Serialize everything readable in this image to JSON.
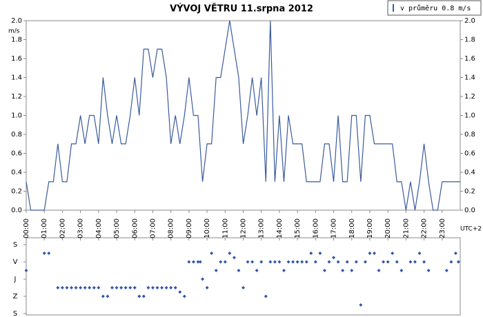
{
  "chart_data": [
    {
      "type": "line",
      "title": "VÝVOJ VĚTRU  11.srpna 2012",
      "ylabel": "m/s",
      "xlabel": "UTC+2",
      "legend": "top-right",
      "xlim": [
        0,
        24
      ],
      "xticks": [
        {
          "value": 0,
          "label": "00:00"
        },
        {
          "value": 1,
          "label": "01:00"
        },
        {
          "value": 2,
          "label": "02:00"
        },
        {
          "value": 3,
          "label": "03:00"
        },
        {
          "value": 4,
          "label": "04:00"
        },
        {
          "value": 5,
          "label": "05:00"
        },
        {
          "value": 6,
          "label": "06:00"
        },
        {
          "value": 7,
          "label": "07:00"
        },
        {
          "value": 8,
          "label": "08:00"
        },
        {
          "value": 9,
          "label": "09:00"
        },
        {
          "value": 10,
          "label": "10:00"
        },
        {
          "value": 11,
          "label": "11:00"
        },
        {
          "value": 12,
          "label": "12:00"
        },
        {
          "value": 13,
          "label": "13:00"
        },
        {
          "value": 14,
          "label": "14:00"
        },
        {
          "value": 15,
          "label": "15:00"
        },
        {
          "value": 16,
          "label": "16:00"
        },
        {
          "value": 17,
          "label": "17:00"
        },
        {
          "value": 18,
          "label": "18:00"
        },
        {
          "value": 19,
          "label": "19:00"
        },
        {
          "value": 20,
          "label": "20:00"
        },
        {
          "value": 21,
          "label": "21:00"
        },
        {
          "value": 22,
          "label": "22:00"
        },
        {
          "value": 23,
          "label": "23:00"
        }
      ],
      "ylim": [
        0,
        2
      ],
      "yticks": [
        {
          "value": 0,
          "label": "0.0"
        },
        0.2,
        0.4,
        0.6,
        0.8,
        {
          "value": 1,
          "label": "1.0"
        },
        1.2,
        1.4,
        1.6,
        1.8,
        {
          "value": 2,
          "label": "2.0"
        }
      ],
      "x": [
        0,
        0.25,
        1,
        1.25,
        1.5,
        1.75,
        2,
        2.25,
        2.5,
        2.75,
        3,
        3.25,
        3.5,
        3.75,
        4,
        4.25,
        4.5,
        4.75,
        5,
        5.25,
        5.5,
        5.75,
        6,
        6.25,
        6.5,
        6.75,
        7,
        7.25,
        7.5,
        7.75,
        8,
        8.25,
        8.5,
        8.75,
        9,
        9.25,
        9.5,
        9.75,
        10,
        10.25,
        10.5,
        10.75,
        11,
        11.25,
        11.5,
        11.75,
        12,
        12.25,
        12.5,
        12.75,
        13,
        13.25,
        13.5,
        13.75,
        14,
        14.25,
        14.5,
        14.75,
        15,
        15.25,
        15.5,
        15.75,
        16,
        16.25,
        16.5,
        16.75,
        17,
        17.25,
        17.5,
        17.75,
        18,
        18.25,
        18.5,
        18.75,
        19,
        19.25,
        19.5,
        19.75,
        20,
        20.25,
        20.5,
        20.75,
        21,
        21.25,
        21.5,
        21.75,
        22,
        22.25,
        22.5,
        22.75,
        23,
        23.25,
        23.5,
        24
      ],
      "series": [
        {
          "name": "v průměru 0.8 m/s",
          "color": "#3a5a9c",
          "values": [
            0.3,
            0,
            0,
            0.3,
            0.3,
            0.7,
            0.3,
            0.3,
            0.7,
            0.7,
            1,
            0.7,
            1,
            1,
            0.7,
            1.4,
            1,
            0.7,
            1,
            0.7,
            0.7,
            1,
            1.4,
            1,
            1.7,
            1.7,
            1.4,
            1.7,
            1.7,
            1.4,
            0.7,
            1,
            0.7,
            1,
            1.4,
            1,
            1,
            0.3,
            0.7,
            0.7,
            1.4,
            1.4,
            1.7,
            2,
            1.7,
            1.4,
            0.7,
            1,
            1.4,
            1,
            1.4,
            0.3,
            2,
            0.3,
            1,
            0.3,
            1,
            0.7,
            0.7,
            0.7,
            0.3,
            0.3,
            0.3,
            0.3,
            0.7,
            0.7,
            0.3,
            1,
            0.3,
            0.3,
            1,
            1,
            0.3,
            1,
            1,
            0.7,
            0.7,
            0.7,
            0.7,
            0.7,
            0.3,
            0.3,
            0,
            0.3,
            0,
            0.3,
            0.7,
            0.3,
            0,
            0,
            0.3,
            0.3,
            0.3,
            0.3
          ]
        }
      ]
    },
    {
      "type": "scatter",
      "color": "#3355aa",
      "xlim": [
        0,
        24
      ],
      "ylim": [
        360,
        0
      ],
      "yticks": [
        {
          "value": 0,
          "label": "S"
        },
        {
          "value": 90,
          "label": "V"
        },
        {
          "value": 180,
          "label": "J"
        },
        {
          "value": 270,
          "label": "Z"
        },
        {
          "value": 360,
          "label": "S"
        }
      ],
      "x": [
        0,
        1,
        1.25,
        1.75,
        2,
        2.25,
        2.5,
        2.75,
        3,
        3.25,
        3.5,
        3.75,
        4,
        4.25,
        4.5,
        4.75,
        5,
        5.25,
        5.5,
        5.75,
        6,
        6.25,
        6.5,
        6.75,
        7,
        7.25,
        7.5,
        7.75,
        8,
        8.25,
        8.5,
        8.75,
        9,
        9.25,
        9.5,
        9.625,
        9.75,
        10,
        10.25,
        10.5,
        10.75,
        11,
        11.25,
        11.5,
        11.75,
        12,
        12.25,
        12.5,
        12.75,
        13,
        13.25,
        13.5,
        13.75,
        14,
        14.25,
        14.5,
        14.75,
        15,
        15.25,
        15.5,
        15.75,
        16,
        16.25,
        16.5,
        16.75,
        17,
        17.25,
        17.5,
        17.75,
        18,
        18.25,
        18.5,
        18.75,
        19,
        19.25,
        19.5,
        19.75,
        20,
        20.25,
        20.5,
        20.75,
        21.25,
        21.5,
        21.75,
        22,
        22.25,
        23.25,
        23.5,
        23.75,
        23.9
      ],
      "values": [
        135,
        45,
        45,
        225,
        225,
        225,
        225,
        225,
        225,
        225,
        225,
        225,
        225,
        270,
        270,
        225,
        225,
        225,
        225,
        225,
        225,
        270,
        270,
        225,
        225,
        225,
        225,
        225,
        225,
        225,
        247.5,
        270,
        90,
        90,
        90,
        90,
        180,
        225,
        45,
        135,
        90,
        90,
        45,
        67.5,
        135,
        225,
        90,
        90,
        135,
        90,
        270,
        90,
        90,
        90,
        135,
        90,
        90,
        90,
        90,
        90,
        45,
        90,
        45,
        135,
        90,
        67.5,
        90,
        135,
        90,
        135,
        90,
        315,
        90,
        45,
        45,
        135,
        90,
        90,
        45,
        90,
        135,
        90,
        90,
        45,
        90,
        135,
        135,
        90,
        45,
        90
      ]
    }
  ]
}
